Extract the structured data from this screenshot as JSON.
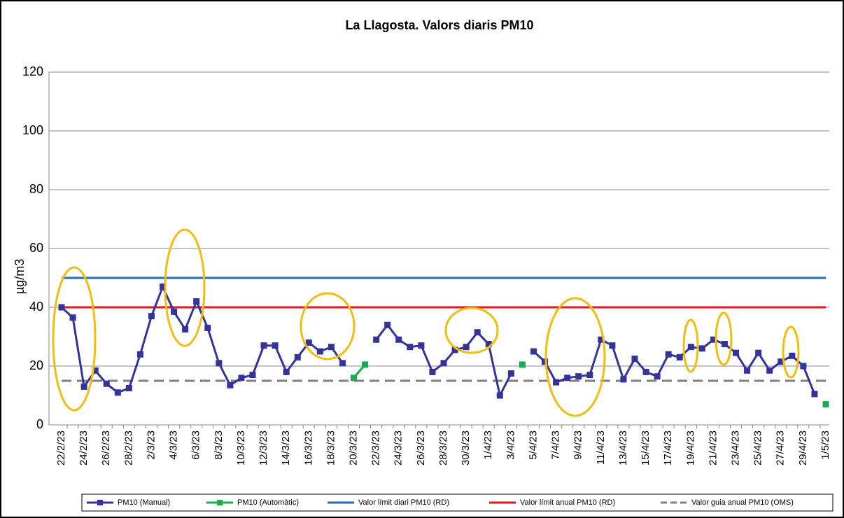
{
  "chart_data": {
    "type": "line",
    "title": "La Llagosta. Valors diaris PM10",
    "y_label": "µg/m3",
    "categories": [
      "22/2/23",
      null,
      "24/2/23",
      null,
      "26/2/23",
      null,
      "28/2/23",
      null,
      "2/3/23",
      null,
      "4/3/23",
      null,
      "6/3/23",
      null,
      "8/3/23",
      null,
      "10/3/23",
      null,
      "12/3/23",
      null,
      "14/3/23",
      null,
      "16/3/23",
      null,
      "18/3/23",
      null,
      "20/3/23",
      null,
      "22/3/23",
      null,
      "24/3/23",
      null,
      "26/3/23",
      null,
      "28/3/23",
      null,
      "30/3/23",
      null,
      "1/4/23",
      null,
      "3/4/23",
      null,
      "5/4/23",
      null,
      "7/4/23",
      null,
      "9/4/23",
      null,
      "11/4/23",
      null,
      "13/4/23",
      null,
      "15/4/23",
      null,
      "17/4/23",
      null,
      "19/4/23",
      null,
      "21/4/23",
      null,
      "23/4/23",
      null,
      "25/4/23",
      null,
      "27/4/23",
      null,
      "29/4/23",
      null,
      "1/5/23"
    ],
    "series": [
      {
        "name": "PM10 (Manual)",
        "color": "#33339a",
        "values": [
          40,
          36.5,
          13,
          18.5,
          14,
          11,
          12.5,
          24,
          37,
          47,
          38.5,
          32.5,
          42,
          33,
          21,
          13.5,
          16,
          17,
          27,
          27,
          18,
          23,
          28,
          25,
          26.5,
          21,
          null,
          null,
          29,
          34,
          29,
          26.5,
          27,
          18,
          21,
          25.5,
          26.5,
          31.5,
          27.5,
          10,
          17.5,
          null,
          25,
          21.5,
          14.5,
          16,
          16.5,
          17,
          29,
          27,
          15.5,
          22.5,
          18,
          16.5,
          24,
          23,
          26.5,
          26,
          29,
          27.5,
          24.5,
          18.5,
          24.5,
          18.5,
          21.5,
          23.5,
          20,
          10.5,
          null
        ]
      },
      {
        "name": "PM10 (Automàtic)",
        "color": "#1aab4a",
        "values": [
          null,
          null,
          null,
          null,
          null,
          null,
          null,
          null,
          null,
          null,
          null,
          null,
          null,
          null,
          null,
          null,
          null,
          null,
          null,
          null,
          null,
          null,
          null,
          null,
          null,
          null,
          16,
          20.5,
          null,
          null,
          null,
          null,
          null,
          null,
          null,
          null,
          null,
          null,
          null,
          null,
          null,
          20.5,
          null,
          null,
          null,
          null,
          null,
          null,
          null,
          null,
          null,
          null,
          null,
          null,
          null,
          null,
          null,
          null,
          null,
          null,
          null,
          null,
          null,
          null,
          null,
          null,
          null,
          null,
          7
        ]
      }
    ],
    "reference_lines": [
      {
        "name": "Valor límit diari PM10 (RD)",
        "color": "#1f6fb5",
        "value": 50,
        "dashed": false
      },
      {
        "name": "Valor límit anual PM10 (RD)",
        "color": "#e8151b",
        "value": 40,
        "dashed": false
      },
      {
        "name": "Valor guia anual PM10 (OMS)",
        "color": "#808080",
        "value": 15,
        "dashed": true
      }
    ],
    "ylim": [
      0,
      120
    ],
    "yticks": [
      0,
      20,
      40,
      60,
      80,
      100,
      120
    ],
    "grid": true
  }
}
